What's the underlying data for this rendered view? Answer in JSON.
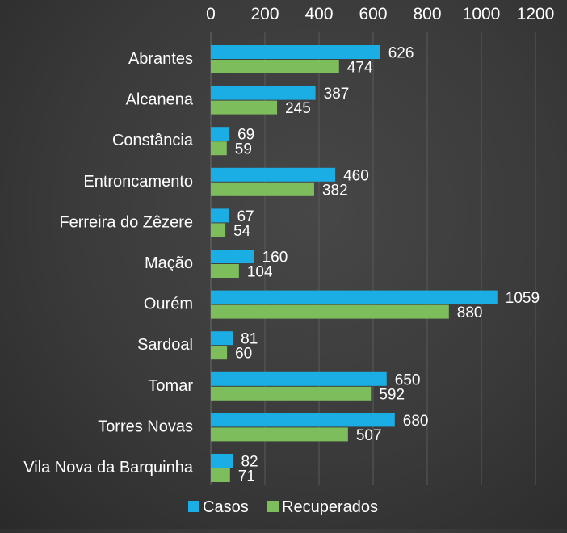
{
  "chart_data": {
    "type": "bar",
    "orientation": "horizontal",
    "categories": [
      "Abrantes",
      "Alcanena",
      "Constância",
      "Entroncamento",
      "Ferreira do Zêzere",
      "Mação",
      "Ourém",
      "Sardoal",
      "Tomar",
      "Torres Novas",
      "Vila Nova da Barquinha"
    ],
    "series": [
      {
        "name": "Casos",
        "color": "#1aaee5",
        "values": [
          626,
          387,
          69,
          460,
          67,
          160,
          1059,
          81,
          650,
          680,
          82
        ]
      },
      {
        "name": "Recuperados",
        "color": "#7ebd5c",
        "values": [
          474,
          245,
          59,
          382,
          54,
          104,
          880,
          60,
          592,
          507,
          71
        ]
      }
    ],
    "xticks": [
      "0",
      "200",
      "400",
      "600",
      "800",
      "1000",
      "1200"
    ],
    "xlim": [
      0,
      1200
    ],
    "xaxis_position": "top",
    "grid": true,
    "legend": "bottom",
    "data_labels": true
  }
}
